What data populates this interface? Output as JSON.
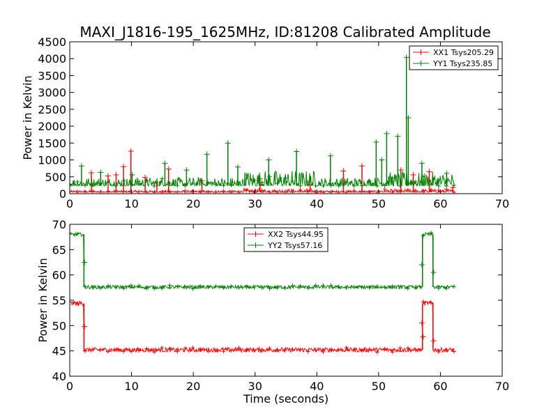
{
  "figure": {
    "title": "MAXI_J1816-195_1625MHz, ID:81208 Calibrated Amplitude",
    "xlabel": "Time (seconds)"
  },
  "chart_data": [
    {
      "type": "line",
      "ylabel": "Power in Kelvin",
      "xlim": [
        0,
        70
      ],
      "ylim": [
        0,
        4500
      ],
      "x_ticks": [
        "0",
        "10",
        "20",
        "30",
        "40",
        "50",
        "60",
        "70"
      ],
      "y_ticks": [
        "0",
        "500",
        "1000",
        "1500",
        "2000",
        "2500",
        "3000",
        "3500",
        "4000",
        "4500"
      ],
      "legend_position": "upper right",
      "series": [
        {
          "name": "XX1 Tsys205.29",
          "color": "#ff0000",
          "baseline": 40,
          "noise": 60,
          "x_range": [
            0,
            62.2
          ],
          "spikes": [
            [
              3.5,
              620
            ],
            [
              6.2,
              530
            ],
            [
              7.5,
              560
            ],
            [
              8.7,
              800
            ],
            [
              9.9,
              1260
            ],
            [
              12.2,
              480
            ],
            [
              14.1,
              330
            ],
            [
              16.0,
              730
            ],
            [
              21.4,
              380
            ],
            [
              30.8,
              440
            ],
            [
              38.9,
              260
            ],
            [
              44.3,
              670
            ],
            [
              47.3,
              820
            ],
            [
              53.6,
              700
            ],
            [
              55.6,
              560
            ],
            [
              58.2,
              650
            ],
            [
              62.0,
              180
            ]
          ]
        },
        {
          "name": "YY1 Tsys235.85",
          "color": "#008000",
          "baseline": 230,
          "noise": 260,
          "x_range": [
            0,
            62.2
          ],
          "spikes": [
            [
              1.9,
              820
            ],
            [
              5.0,
              630
            ],
            [
              10.1,
              560
            ],
            [
              15.4,
              900
            ],
            [
              18.9,
              700
            ],
            [
              22.2,
              1170
            ],
            [
              25.6,
              1500
            ],
            [
              27.2,
              790
            ],
            [
              32.2,
              1000
            ],
            [
              36.7,
              1250
            ],
            [
              42.2,
              1120
            ],
            [
              49.6,
              1530
            ],
            [
              50.5,
              1000
            ],
            [
              51.3,
              1780
            ],
            [
              53.1,
              1700
            ],
            [
              54.5,
              4040
            ],
            [
              54.8,
              2250
            ],
            [
              57.0,
              900
            ],
            [
              61.0,
              600
            ]
          ]
        }
      ]
    },
    {
      "type": "line",
      "ylabel": "Power in Kelvin",
      "xlim": [
        0,
        70
      ],
      "ylim": [
        40,
        70
      ],
      "x_ticks": [
        "0",
        "10",
        "20",
        "30",
        "40",
        "50",
        "60",
        "70"
      ],
      "y_ticks": [
        "40",
        "45",
        "50",
        "55",
        "60",
        "65",
        "70"
      ],
      "legend_position": "upper center",
      "series": [
        {
          "name": "XX2 Tsys44.95",
          "color": "#ff0000",
          "low": 45.2,
          "high": 54.4,
          "noise": 0.45,
          "x_range": [
            0,
            62.2
          ],
          "high_intervals": [
            [
              0,
              2.3
            ],
            [
              57.1,
              58.8
            ]
          ],
          "transition_points": [
            [
              2.4,
              49.8
            ],
            [
              57.0,
              50.5
            ],
            [
              57.2,
              47.8
            ],
            [
              58.9,
              47.0
            ]
          ]
        },
        {
          "name": "YY2 Tsys57.16",
          "color": "#008000",
          "low": 57.6,
          "high": 68.0,
          "noise": 0.35,
          "x_range": [
            0,
            62.2
          ],
          "high_intervals": [
            [
              0,
              2.3
            ],
            [
              57.1,
              58.8
            ]
          ],
          "transition_points": [
            [
              2.4,
              62.5
            ],
            [
              57.0,
              62.0
            ],
            [
              58.9,
              60.5
            ]
          ]
        }
      ]
    }
  ]
}
